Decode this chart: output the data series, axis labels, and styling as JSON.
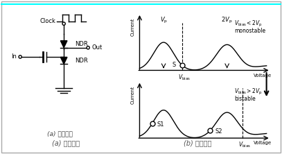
{
  "bg_color": "#ffffff",
  "border_color": "#aaaaaa",
  "left_panel_label": "(a) 电路结构",
  "right_panel_label": "(b) 工作原理",
  "current_label": "Current",
  "voltage_label": "Voltage",
  "voltage_label2": "Voltage"
}
